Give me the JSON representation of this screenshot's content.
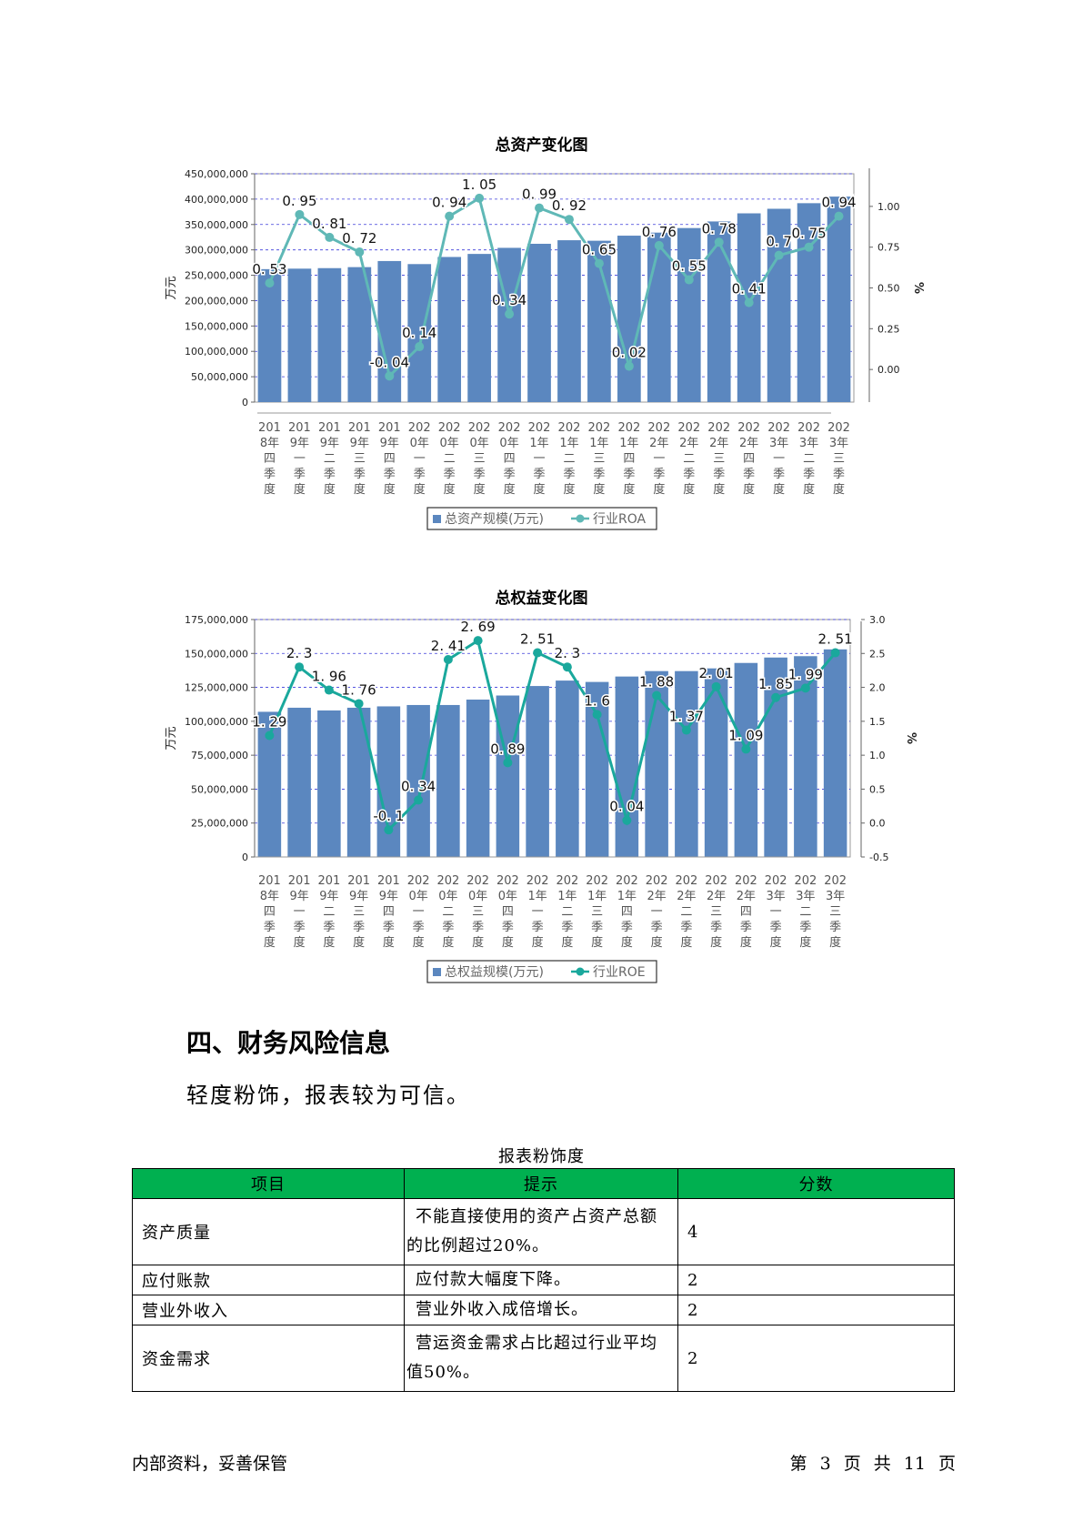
{
  "charts": [
    {
      "type": "bar",
      "title": "总资产变化图",
      "ylabel_left": "万元",
      "ylabel_right": "%",
      "categories": [
        "2018年四季度",
        "2019年一季度",
        "2019年二季度",
        "2019年三季度",
        "2019年四季度",
        "2020年一季度",
        "2020年二季度",
        "2020年三季度",
        "2020年四季度",
        "2021年一季度",
        "2021年二季度",
        "2021年三季度",
        "2021年四季度",
        "2022年一季度",
        "2022年二季度",
        "2022年三季度",
        "2022年四季度",
        "2023年一季度",
        "2023年二季度",
        "2023年三季度"
      ],
      "category_lines": [
        [
          "201",
          "8年",
          "四",
          "季",
          "度"
        ],
        [
          "201",
          "9年",
          "一",
          "季",
          "度"
        ],
        [
          "201",
          "9年",
          "二",
          "季",
          "度"
        ],
        [
          "201",
          "9年",
          "三",
          "季",
          "度"
        ],
        [
          "201",
          "9年",
          "四",
          "季",
          "度"
        ],
        [
          "202",
          "0年",
          "一",
          "季",
          "度"
        ],
        [
          "202",
          "0年",
          "二",
          "季",
          "度"
        ],
        [
          "202",
          "0年",
          "三",
          "季",
          "度"
        ],
        [
          "202",
          "0年",
          "四",
          "季",
          "度"
        ],
        [
          "202",
          "1年",
          "一",
          "季",
          "度"
        ],
        [
          "202",
          "1年",
          "二",
          "季",
          "度"
        ],
        [
          "202",
          "1年",
          "三",
          "季",
          "度"
        ],
        [
          "202",
          "1年",
          "四",
          "季",
          "度"
        ],
        [
          "202",
          "2年",
          "一",
          "季",
          "度"
        ],
        [
          "202",
          "2年",
          "二",
          "季",
          "度"
        ],
        [
          "202",
          "2年",
          "三",
          "季",
          "度"
        ],
        [
          "202",
          "2年",
          "四",
          "季",
          "度"
        ],
        [
          "202",
          "3年",
          "一",
          "季",
          "度"
        ],
        [
          "202",
          "3年",
          "二",
          "季",
          "度"
        ],
        [
          "202",
          "3年",
          "三",
          "季",
          "度"
        ]
      ],
      "left_ticks": [
        "0",
        "50,000,000",
        "100,000,000",
        "150,000,000",
        "200,000,000",
        "250,000,000",
        "300,000,000",
        "350,000,000",
        "400,000,000",
        "450,000,000"
      ],
      "right_ticks": [
        "0.00",
        "0.25",
        "0.50",
        "0.75",
        "1.00"
      ],
      "left_ylim": [
        0,
        450000000
      ],
      "right_ylim": [
        -0.2,
        1.2
      ],
      "right_tick_values": [
        0,
        0.25,
        0.5,
        0.75,
        1.0
      ],
      "bars": {
        "name": "总资产规模(万元)",
        "color": "#5b87bf",
        "values": [
          262000000,
          263000000,
          264000000,
          266000000,
          278000000,
          272000000,
          286000000,
          292000000,
          304000000,
          312000000,
          319000000,
          318000000,
          328000000,
          334000000,
          343000000,
          356000000,
          372000000,
          381000000,
          392000000,
          405000000
        ]
      },
      "line": {
        "name": "行业ROA",
        "color": "#5fb8b6",
        "values": [
          0.53,
          0.95,
          0.81,
          0.72,
          -0.04,
          0.14,
          0.94,
          1.05,
          0.34,
          0.99,
          0.92,
          0.65,
          0.02,
          0.76,
          0.55,
          0.78,
          0.41,
          0.7,
          0.75,
          0.94
        ],
        "labels": [
          "0.53",
          "0.95",
          "0.81",
          "0.72",
          "-0.04",
          "0.14",
          "0.94",
          "1.05",
          "0.34",
          "0.99",
          "0.92",
          "0.65",
          "0.02",
          "0.76",
          "0.55",
          "0.78",
          "0.41",
          "0.7",
          "0.75",
          "0.94"
        ]
      },
      "grid": true,
      "legend_position": "bottom"
    },
    {
      "type": "bar",
      "title": "总权益变化图",
      "ylabel_left": "万元",
      "ylabel_right": "%",
      "categories": [
        "2018年四季度",
        "2019年一季度",
        "2019年二季度",
        "2019年三季度",
        "2019年四季度",
        "2020年一季度",
        "2020年二季度",
        "2020年三季度",
        "2020年四季度",
        "2021年一季度",
        "2021年二季度",
        "2021年三季度",
        "2021年四季度",
        "2022年一季度",
        "2022年二季度",
        "2022年三季度",
        "2022年四季度",
        "2023年一季度",
        "2023年二季度",
        "2023年三季度"
      ],
      "category_lines": [
        [
          "201",
          "8年",
          "四",
          "季",
          "度"
        ],
        [
          "201",
          "9年",
          "一",
          "季",
          "度"
        ],
        [
          "201",
          "9年",
          "二",
          "季",
          "度"
        ],
        [
          "201",
          "9年",
          "三",
          "季",
          "度"
        ],
        [
          "201",
          "9年",
          "四",
          "季",
          "度"
        ],
        [
          "202",
          "0年",
          "一",
          "季",
          "度"
        ],
        [
          "202",
          "0年",
          "二",
          "季",
          "度"
        ],
        [
          "202",
          "0年",
          "三",
          "季",
          "度"
        ],
        [
          "202",
          "0年",
          "四",
          "季",
          "度"
        ],
        [
          "202",
          "1年",
          "一",
          "季",
          "度"
        ],
        [
          "202",
          "1年",
          "二",
          "季",
          "度"
        ],
        [
          "202",
          "1年",
          "三",
          "季",
          "度"
        ],
        [
          "202",
          "1年",
          "四",
          "季",
          "度"
        ],
        [
          "202",
          "2年",
          "一",
          "季",
          "度"
        ],
        [
          "202",
          "2年",
          "二",
          "季",
          "度"
        ],
        [
          "202",
          "2年",
          "三",
          "季",
          "度"
        ],
        [
          "202",
          "2年",
          "四",
          "季",
          "度"
        ],
        [
          "202",
          "3年",
          "一",
          "季",
          "度"
        ],
        [
          "202",
          "3年",
          "二",
          "季",
          "度"
        ],
        [
          "202",
          "3年",
          "三",
          "季",
          "度"
        ]
      ],
      "left_ticks": [
        "0",
        "25,000,000",
        "50,000,000",
        "75,000,000",
        "100,000,000",
        "125,000,000",
        "150,000,000",
        "175,000,000"
      ],
      "right_ticks": [
        "-0.5",
        "0.0",
        "0.5",
        "1.0",
        "1.5",
        "2.0",
        "2.5",
        "3.0"
      ],
      "left_ylim": [
        0,
        175000000
      ],
      "right_ylim": [
        -0.5,
        3.0
      ],
      "right_tick_values": [
        -0.5,
        0,
        0.5,
        1.0,
        1.5,
        2.0,
        2.5,
        3.0
      ],
      "bars": {
        "name": "总权益规模(万元)",
        "color": "#5b87bf",
        "values": [
          107000000,
          110000000,
          108000000,
          110000000,
          111000000,
          112000000,
          112000000,
          116000000,
          119000000,
          126000000,
          130000000,
          129000000,
          133000000,
          137000000,
          137000000,
          139000000,
          143000000,
          147000000,
          148000000,
          153000000
        ]
      },
      "line": {
        "name": "行业ROE",
        "color": "#1aa89c",
        "values": [
          1.29,
          2.3,
          1.96,
          1.76,
          -0.1,
          0.34,
          2.41,
          2.69,
          0.89,
          2.51,
          2.3,
          1.6,
          0.04,
          1.88,
          1.37,
          2.01,
          1.09,
          1.85,
          1.99,
          2.51
        ],
        "labels": [
          "1.29",
          "2.3",
          "1.96",
          "1.76",
          "-0.1",
          "0.34",
          "2.41",
          "2.69",
          "0.89",
          "2.51",
          "2.3",
          "1.6",
          "0.04",
          "1.88",
          "1.37",
          "2.01",
          "1.09",
          "1.85",
          "1.99",
          "2.51"
        ]
      },
      "grid": true,
      "legend_position": "bottom"
    }
  ],
  "section": {
    "title": "四、财务风险信息",
    "paragraph": "轻度粉饰，报表较为可信。"
  },
  "table": {
    "caption": "报表粉饰度",
    "header_color": "#00b050",
    "headers": [
      "项目",
      "提示",
      "分数"
    ],
    "rows": [
      {
        "item": "资产质量",
        "hint": "不能直接使用的资产占资产总额的比例超过20%。",
        "score": "4"
      },
      {
        "item": "应付账款",
        "hint": "应付款大幅度下降。",
        "score": "2"
      },
      {
        "item": "营业外收入",
        "hint": "营业外收入成倍增长。",
        "score": "2"
      },
      {
        "item": "资金需求",
        "hint": "营运资金需求占比超过行业平均值50%。",
        "score": "2"
      }
    ]
  },
  "footer": {
    "left": "内部资料，妥善保管",
    "right": "第 3 页  共 11 页"
  }
}
